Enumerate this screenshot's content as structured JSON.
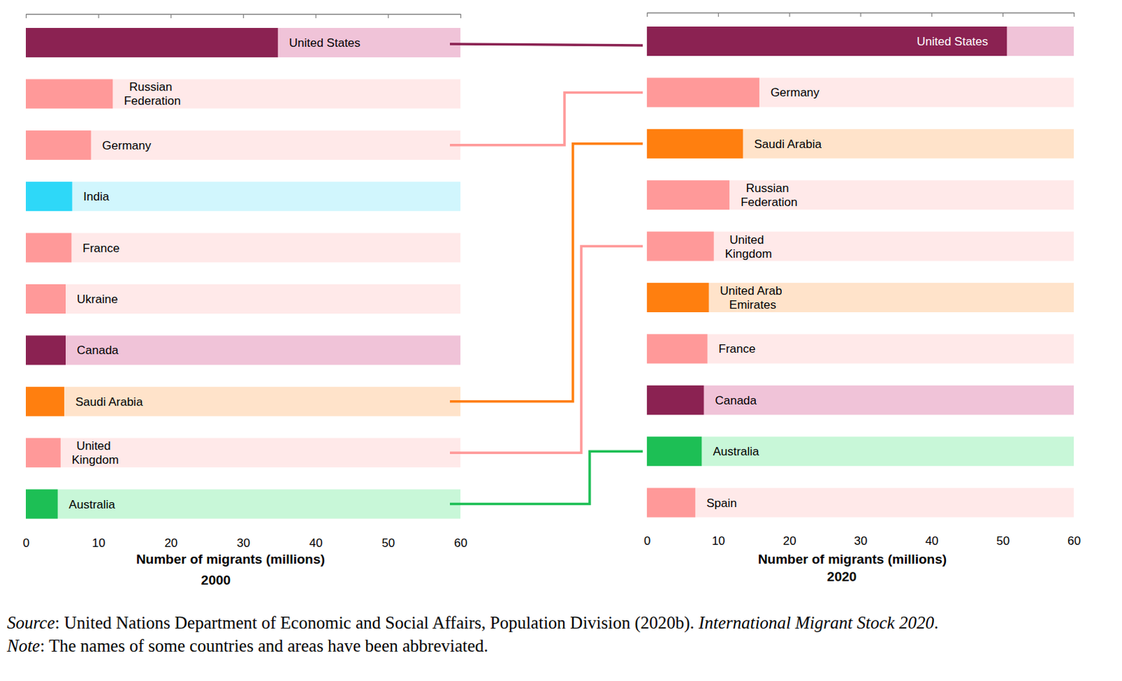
{
  "chart_data": [
    {
      "type": "bar",
      "orientation": "horizontal",
      "title": "2000",
      "x_label": "Number of migrants (millions)",
      "categories": [
        "United States",
        "Russian\nFederation",
        "Germany",
        "India",
        "France",
        "Ukraine",
        "Canada",
        "Saudi Arabia",
        "United\nKingdom",
        "Australia"
      ],
      "values": [
        34.8,
        12.0,
        9.0,
        6.4,
        6.3,
        5.5,
        5.5,
        5.3,
        4.8,
        4.4
      ],
      "colors": [
        "#8b2252",
        "#ff9999",
        "#ff9999",
        "#2ed8f8",
        "#ff9999",
        "#ff9999",
        "#8b2252",
        "#ff7f0f",
        "#ff9999",
        "#1dbf55"
      ],
      "xlim": [
        0,
        60
      ],
      "xticks": [
        0,
        10,
        20,
        30,
        40,
        50,
        60
      ]
    },
    {
      "type": "bar",
      "orientation": "horizontal",
      "title": "2020",
      "x_label": "Number of migrants (millions)",
      "categories": [
        "United States",
        "Germany",
        "Saudi Arabia",
        "Russian\nFederation",
        "United\nKingdom",
        "United Arab\nEmirates",
        "France",
        "Canada",
        "Australia",
        "Spain"
      ],
      "values": [
        50.6,
        15.8,
        13.5,
        11.6,
        9.4,
        8.7,
        8.5,
        8.0,
        7.7,
        6.8
      ],
      "colors": [
        "#8b2252",
        "#ff9999",
        "#ff7f0f",
        "#ff9999",
        "#ff9999",
        "#ff7f0f",
        "#ff9999",
        "#8b2252",
        "#1dbf55",
        "#ff9999"
      ],
      "xlim": [
        0,
        60
      ],
      "xticks": [
        0,
        10,
        20,
        30,
        40,
        50,
        60
      ]
    }
  ],
  "source": [
    "Source",
    ": United Nations Department of Economic and Social Affairs, Population Division (2020b). ",
    "International Migrant Stock 2020",
    "."
  ],
  "note": [
    "Note",
    ": The names of some countries and areas have been abbreviated."
  ]
}
